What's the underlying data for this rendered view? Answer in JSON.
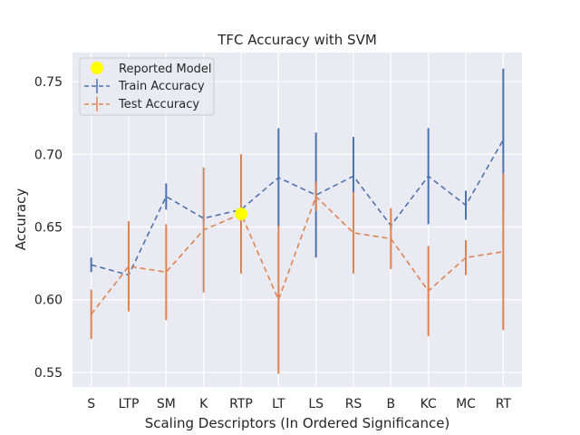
{
  "chart_data": {
    "type": "line",
    "title": "TFC Accuracy with SVM",
    "xlabel": "Scaling Descriptors (In Ordered Significance)",
    "ylabel": "Accuracy",
    "categories": [
      "S",
      "LTP",
      "SM",
      "K",
      "RTP",
      "LT",
      "LS",
      "RS",
      "B",
      "KC",
      "MC",
      "RT"
    ],
    "ylim": [
      0.54,
      0.77
    ],
    "yticks": [
      0.55,
      0.6,
      0.65,
      0.7,
      0.75
    ],
    "ytick_labels": [
      "0.55",
      "0.60",
      "0.65",
      "0.70",
      "0.75"
    ],
    "grid": true,
    "legend_position": "upper-left",
    "series": [
      {
        "name": "Train Accuracy",
        "color": "#4c72b0",
        "line_style": "dashed",
        "values": [
          0.624,
          0.617,
          0.671,
          0.656,
          0.662,
          0.684,
          0.672,
          0.685,
          0.651,
          0.685,
          0.665,
          0.71
        ],
        "errors": [
          0.005,
          0.002,
          0.009,
          0.002,
          0.002,
          0.034,
          0.043,
          0.027,
          0.002,
          0.033,
          0.01,
          0.049
        ]
      },
      {
        "name": "Test Accuracy",
        "color": "#dd8452",
        "line_style": "dashed",
        "values": [
          0.59,
          0.623,
          0.619,
          0.648,
          0.659,
          0.6,
          0.671,
          0.646,
          0.642,
          0.606,
          0.629,
          0.633
        ],
        "errors": [
          0.017,
          0.031,
          0.033,
          0.043,
          0.041,
          0.051,
          0.01,
          0.028,
          0.021,
          0.031,
          0.012,
          0.054
        ]
      }
    ],
    "highlight": {
      "name": "Reported Model",
      "category": "RTP",
      "value": 0.659,
      "color": "#ffff00"
    }
  }
}
